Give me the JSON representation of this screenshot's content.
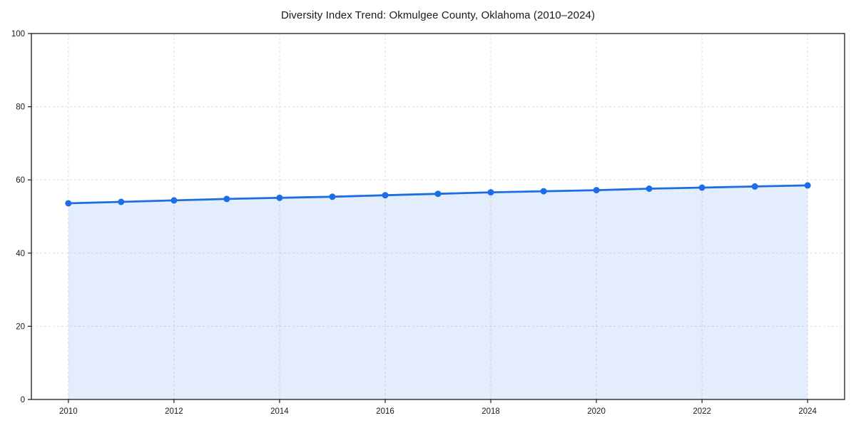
{
  "chart_data": {
    "type": "area",
    "title": "Diversity Index Trend: Okmulgee County, Oklahoma (2010–2024)",
    "xlabel": "",
    "ylabel": "",
    "x": [
      2010,
      2011,
      2012,
      2013,
      2014,
      2015,
      2016,
      2017,
      2018,
      2019,
      2020,
      2021,
      2022,
      2023,
      2024
    ],
    "series": [
      {
        "name": "Diversity Index",
        "values": [
          53.6,
          54.0,
          54.4,
          54.8,
          55.1,
          55.4,
          55.8,
          56.2,
          56.6,
          56.9,
          57.2,
          57.6,
          57.9,
          58.2,
          58.5
        ]
      }
    ],
    "xlim": [
      2009.3,
      2024.7
    ],
    "ylim": [
      0,
      100
    ],
    "x_ticks": [
      2010,
      2012,
      2014,
      2016,
      2018,
      2020,
      2022,
      2024
    ],
    "y_ticks": [
      0,
      20,
      40,
      60,
      80,
      100
    ],
    "grid": true,
    "grid_style": "dashed",
    "legend": "none",
    "marker": "circle",
    "colors": {
      "line": "#1b6ee3",
      "fill_opacity": 0.12,
      "grid": "#dedede",
      "axis": "#1a1a1a",
      "text": "#1a1a1a",
      "background": "#ffffff"
    }
  }
}
